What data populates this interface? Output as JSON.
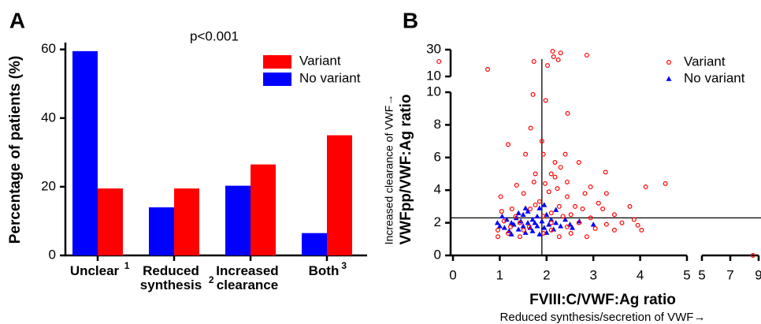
{
  "chart_data": [
    {
      "type": "bar",
      "panel": "A",
      "title": "p<0.001",
      "ylabel": "Percentage of patients  (%)",
      "categories": [
        "Unclear",
        "Reduced synthesis",
        "Increased clearance",
        "Both"
      ],
      "category_notes": [
        "1",
        "2",
        null,
        "3"
      ],
      "series": [
        {
          "name": "Variant",
          "color": "#ff0000",
          "values": [
            19.5,
            19.5,
            26.5,
            35
          ]
        },
        {
          "name": "No variant",
          "color": "#0000ff",
          "values": [
            59.5,
            14,
            20.3,
            6.5
          ]
        }
      ],
      "ylim": [
        0,
        62
      ],
      "yticks": [
        0,
        20,
        40,
        60
      ],
      "legend": "top-right"
    },
    {
      "type": "scatter",
      "panel": "B",
      "xlabel": "FVIII:C/VWF:Ag ratio",
      "xlabel_note": "Reduced synthesis/secretion of  VWF→",
      "ylabel": "VWFpp/VWF:Ag ratio",
      "ylabel_note": "Increased clearance of VWF→",
      "x_segments": [
        {
          "xlim": [
            0,
            5
          ],
          "xticks": [
            0,
            1,
            2,
            3,
            4,
            5
          ]
        },
        {
          "xlim": [
            5,
            9
          ],
          "xticks": [
            5,
            7,
            9
          ]
        }
      ],
      "y_segments": [
        {
          "ylim": [
            0,
            10
          ],
          "yticks": [
            0,
            2,
            4,
            6,
            8,
            10
          ]
        },
        {
          "ylim": [
            10,
            30
          ],
          "yticks": [
            10,
            30
          ]
        }
      ],
      "hline": 2.3,
      "vline": 1.9,
      "legend": "top-right",
      "series": [
        {
          "name": "Variant",
          "color": "#ff0000",
          "marker": "circle",
          "x": [
            -0.3,
            0.74,
            1.73,
            2.02,
            2.15,
            2.25,
            2.13,
            2.3,
            2.86,
            1.71,
            1.98,
            2.45,
            1.66,
            1.18,
            1.9,
            1.93,
            1.55,
            2.4,
            2.69,
            2.18,
            3.26,
            1.76,
            2.1,
            2.3,
            1.97,
            1.73,
            2.18,
            2.44,
            1.36,
            2.94,
            4.12,
            4.54,
            2.23,
            1.51,
            2.05,
            2.82,
            3.28,
            1.02,
            1.85,
            2.44,
            3.11,
            1.76,
            2.27,
            2.61,
            3.78,
            1.26,
            1.65,
            2.77,
            3.2,
            1.04,
            2.1,
            2.52,
            3.45,
            1.34,
            1.93,
            2.35,
            2.94,
            3.87,
            1.09,
            1.43,
            2.1,
            2.69,
            3.28,
            3.61,
            3.95,
            1.23,
            1.63,
            2.44,
            3.04,
            0.96,
            1.51,
            2.1,
            3.45,
            4.03,
            1.18,
            1.93,
            2.52,
            0.96,
            1.43,
            2.27,
            2.86,
            8.6
          ],
          "y": [
            21.2,
            15.3,
            21.2,
            18.2,
            24.7,
            22.4,
            28.8,
            27.6,
            25.9,
            9.86,
            9.5,
            8.7,
            7.8,
            6.8,
            7.0,
            6.2,
            6.2,
            6.2,
            5.7,
            5.7,
            5.1,
            5.0,
            5.0,
            5.4,
            4.4,
            4.5,
            4.8,
            4.5,
            4.3,
            4.2,
            4.2,
            4.4,
            4.1,
            3.8,
            3.9,
            3.8,
            3.8,
            3.6,
            3.3,
            3.6,
            3.2,
            3.1,
            3.0,
            3.0,
            3.0,
            2.85,
            2.85,
            2.85,
            2.85,
            2.7,
            2.6,
            2.5,
            2.5,
            2.4,
            2.4,
            2.4,
            2.3,
            2.2,
            2.1,
            2.0,
            2.0,
            2.0,
            1.9,
            2.0,
            1.85,
            1.75,
            1.75,
            1.75,
            1.65,
            1.55,
            1.55,
            1.55,
            1.55,
            1.55,
            1.35,
            1.35,
            1.35,
            1.15,
            1.15,
            1.15,
            1.15,
            0
          ]
        },
        {
          "name": "No variant",
          "color": "#0000ff",
          "marker": "triangle",
          "x": [
            1.0,
            0.95,
            1.1,
            1.15,
            1.2,
            1.25,
            1.3,
            1.35,
            1.4,
            1.45,
            1.5,
            1.5,
            1.55,
            1.6,
            1.6,
            1.65,
            1.7,
            1.7,
            1.75,
            1.8,
            1.8,
            1.85,
            1.85,
            1.9,
            1.95,
            1.95,
            2.0,
            2.05,
            2.1,
            2.15,
            2.2,
            2.3,
            2.4,
            2.5,
            2.55,
            2.7,
            1.4,
            1.25,
            1.55,
            2.0,
            2.2,
            1.05,
            3.0
          ],
          "y": [
            1.8,
            2.0,
            1.7,
            2.2,
            1.5,
            2.0,
            1.9,
            2.3,
            1.6,
            2.1,
            1.8,
            2.5,
            1.4,
            2.0,
            2.7,
            1.7,
            2.2,
            1.5,
            2.0,
            2.4,
            1.8,
            1.3,
            2.9,
            2.1,
            3.1,
            1.7,
            2.5,
            1.9,
            2.2,
            1.6,
            2.0,
            1.8,
            2.2,
            1.9,
            1.7,
            2.1,
            2.6,
            1.3,
            2.9,
            1.4,
            2.8,
            2.4,
            1.9
          ]
        }
      ]
    }
  ]
}
